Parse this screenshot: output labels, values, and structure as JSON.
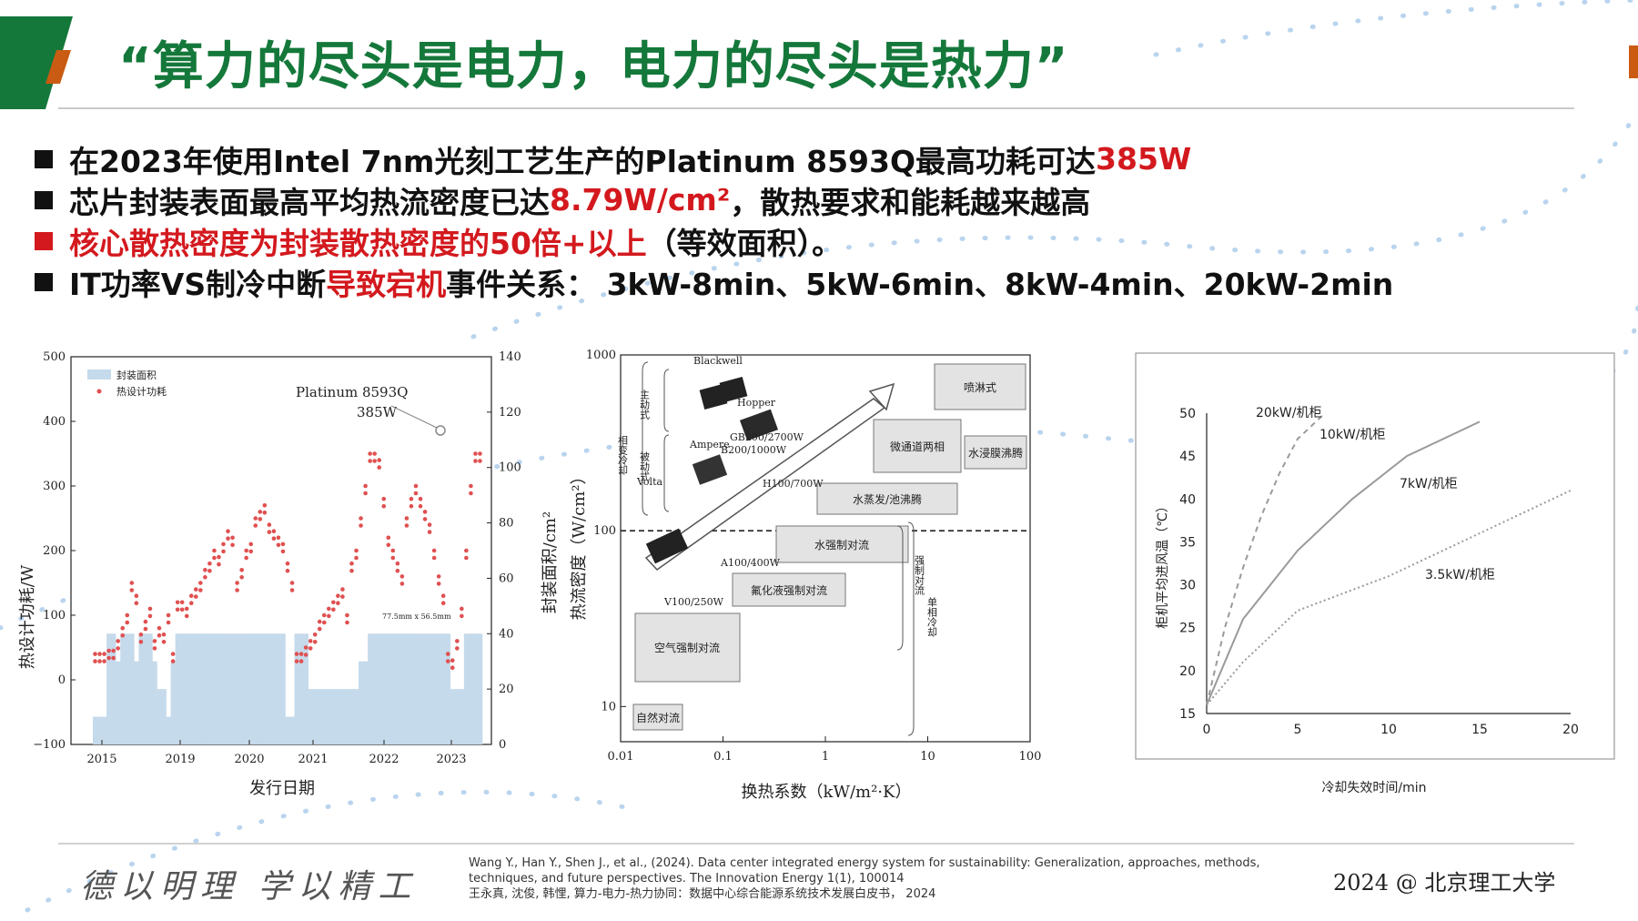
{
  "slide": {
    "title": "“算力的尽头是电力，电力的尽头是热力”",
    "colors": {
      "brand_green": "#15783b",
      "accent_orange": "#c95b12",
      "highlight_red": "#d3191e",
      "dot_blue": "#b9d4ee"
    }
  },
  "bullets": [
    {
      "pre": "在2023年使用Intel 7nm光刻工艺生产的Platinum 8593Q最高功耗可达",
      "hl": "385W",
      "post": ""
    },
    {
      "pre": "芯片封装表面最高平均热流密度已达",
      "hl": "8.79W/cm²",
      "post": "，散热要求和能耗越来越高"
    },
    {
      "pre": "",
      "hl": "核心散热密度为封装散热密度的50倍+以上",
      "post": "（等效面积）。"
    },
    {
      "pre": "IT功率VS制冷中断",
      "hl": "导致宕机",
      "post": "事件关系： 3kW-8min、5kW-6min、8kW-4min、20kW-2min"
    }
  ],
  "chart1": {
    "legend": [
      "封装面积",
      "热设计功耗"
    ],
    "ylabel_left": "热设计功耗/W",
    "ylabel_right": "封装面积/cm²",
    "xlabel": "发行日期",
    "annotation": [
      "Platinum 8593Q",
      "385W"
    ],
    "inner_label": "77.5mm x 56.5mm"
  },
  "chart2": {
    "ylabel": "热流密度（W/cm²）",
    "xlabel": "换热系数（kW/m²·K）",
    "boxes": [
      "喷淋式",
      "微通道两相",
      "水浸膜沸腾",
      "水蒸发/池沸腾",
      "水强制对流",
      "氟化液强制对流",
      "空气强制对流",
      "自然对流"
    ],
    "chips": [
      "Volta",
      "Ampere",
      "Hopper",
      "Blackwell"
    ],
    "chip_labels": [
      "V100/250W",
      "A100/400W",
      "H100/700W",
      "GB200/2700W",
      "B200/1000W"
    ],
    "side_labels": [
      "相变冷却",
      "主动式",
      "被动式",
      "强制对流",
      "单相冷却"
    ]
  },
  "chart_data": [
    {
      "type": "bar",
      "xlim": [
        "2015",
        "2023"
      ],
      "x_ticks": [
        "2015",
        "2019",
        "2020",
        "2021",
        "2022",
        "2023"
      ],
      "y_left_ticks": [
        "500",
        "400",
        "300",
        "200",
        "100",
        "0",
        "−100"
      ],
      "y_left_range": [
        -100,
        500
      ],
      "y_right_ticks": [
        "140",
        "120",
        "100",
        "80",
        "60",
        "40",
        "20",
        "0"
      ],
      "y_right_range": [
        0,
        140
      ],
      "series": [
        {
          "name": "封装面积",
          "type": "bar",
          "axis": "right",
          "values": [
            10,
            10,
            10,
            40,
            40,
            30,
            40,
            40,
            40,
            30,
            40,
            40,
            40,
            30,
            20,
            20,
            10,
            30,
            40,
            40,
            40,
            40,
            40,
            40,
            40,
            40,
            40,
            40,
            40,
            40,
            40,
            40,
            40,
            40,
            40,
            40,
            40,
            40,
            40,
            40,
            40,
            40,
            10,
            10,
            40,
            40,
            40,
            20,
            20,
            20,
            20,
            20,
            20,
            20,
            20,
            20,
            20,
            20,
            30,
            30,
            40,
            40,
            40,
            40,
            40,
            40,
            40,
            40,
            40,
            40,
            40,
            40,
            40,
            40,
            40,
            40,
            40,
            40,
            20,
            20,
            20,
            40,
            40,
            40,
            40
          ]
        },
        {
          "name": "热设计功耗",
          "type": "scatter",
          "axis": "left",
          "values": [
            40,
            40,
            40,
            45,
            45,
            60,
            80,
            100,
            150,
            130,
            70,
            90,
            110,
            60,
            80,
            70,
            100,
            40,
            120,
            120,
            110,
            130,
            140,
            150,
            170,
            180,
            200,
            190,
            210,
            230,
            220,
            150,
            170,
            200,
            210,
            250,
            260,
            270,
            240,
            230,
            220,
            210,
            180,
            150,
            40,
            40,
            50,
            60,
            70,
            90,
            100,
            110,
            120,
            130,
            140,
            100,
            180,
            200,
            250,
            300,
            350,
            350,
            340,
            280,
            220,
            200,
            180,
            160,
            250,
            280,
            300,
            280,
            260,
            240,
            200,
            160,
            130,
            40,
            30,
            60,
            110,
            200,
            300,
            350,
            350
          ]
        }
      ]
    },
    {
      "type": "scatter",
      "x_ticks": [
        "0.01",
        "0.1",
        "1",
        "10",
        "100"
      ],
      "y_ticks": [
        "1000",
        "100",
        "10"
      ],
      "xlim": [
        0.01,
        100
      ],
      "ylim": [
        10,
        1000
      ],
      "log_x": true,
      "log_y": true,
      "reference_line_y": 100
    },
    {
      "type": "line",
      "xlabel": "冷却失效时间/min",
      "ylabel": "柜机平均进风温（℃）",
      "x_ticks": [
        "0",
        "5",
        "10",
        "15",
        "20"
      ],
      "x_tick_labels": [
        "0",
        "5",
        "10",
        "15",
        "20"
      ],
      "y_ticks": [
        "15",
        "20",
        "25",
        "30",
        "35",
        "40",
        "45",
        "50"
      ],
      "xlim": [
        0,
        20
      ],
      "ylim": [
        15,
        50
      ],
      "series": [
        {
          "name": "20kW/机柜",
          "style": "dashed",
          "x": [
            0,
            1,
            2,
            3,
            4,
            5,
            6.5
          ],
          "y": [
            16,
            25,
            32,
            38,
            43,
            47,
            50
          ]
        },
        {
          "name": "10kW/机柜",
          "style": "solid",
          "x": [
            0,
            2,
            5,
            8,
            11,
            15
          ],
          "y": [
            16,
            26,
            34,
            40,
            45,
            49
          ]
        },
        {
          "name": "7kW/机柜",
          "style": "solid",
          "x": [],
          "y": []
        },
        {
          "name": "3.5kW/机柜",
          "style": "dotted",
          "x": [
            0,
            2,
            5,
            10,
            15,
            20
          ],
          "y": [
            16,
            21,
            27,
            31,
            36,
            41
          ]
        }
      ]
    }
  ],
  "footer": {
    "motto": "德以明理 学以精工",
    "ref1": "Wang Y., Han Y., Shen J., et al., (2024). Data center integrated energy system for sustainability: Generalization, approaches, methods,",
    "ref2": "techniques, and future perspectives. The Innovation Energy 1(1), 100014",
    "ref3": "王永真, 沈俊, 韩悝, 算力-电力-热力协同：数据中心综合能源系统技术发展白皮书， 2024",
    "copyright": "2024 @ 北京理工大学"
  }
}
